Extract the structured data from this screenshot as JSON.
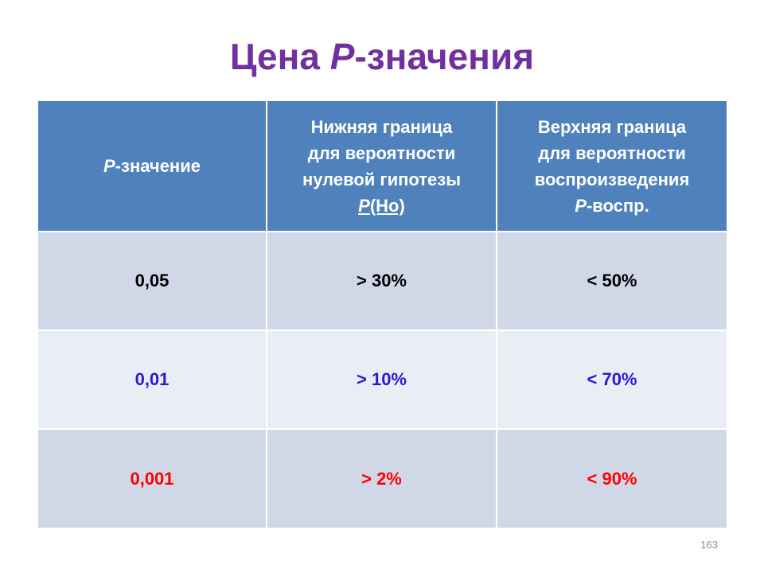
{
  "title": {
    "prefix": "Цена ",
    "italic": "P",
    "suffix": "-значения"
  },
  "table": {
    "headers": [
      {
        "italic": "P",
        "text": "-значение"
      },
      {
        "line1": "Нижняя граница",
        "line2": "для вероятности",
        "line3": "нулевой гипотезы",
        "italic": "P",
        "rest": "(Ho)"
      },
      {
        "line1": "Верхняя граница",
        "line2": "для вероятности",
        "line3": "воспроизведения",
        "italic": "P",
        "rest": "-воспр."
      }
    ],
    "rows": [
      {
        "cells": [
          "0,05",
          "> 30%",
          "< 50%"
        ],
        "color": "#000000"
      },
      {
        "cells": [
          "0,01",
          "> 10%",
          "< 70%"
        ],
        "color": "#2e18d6"
      },
      {
        "cells": [
          "0,001",
          "> 2%",
          "< 90%"
        ],
        "color": "#ff0000"
      }
    ]
  },
  "page_number": "163"
}
